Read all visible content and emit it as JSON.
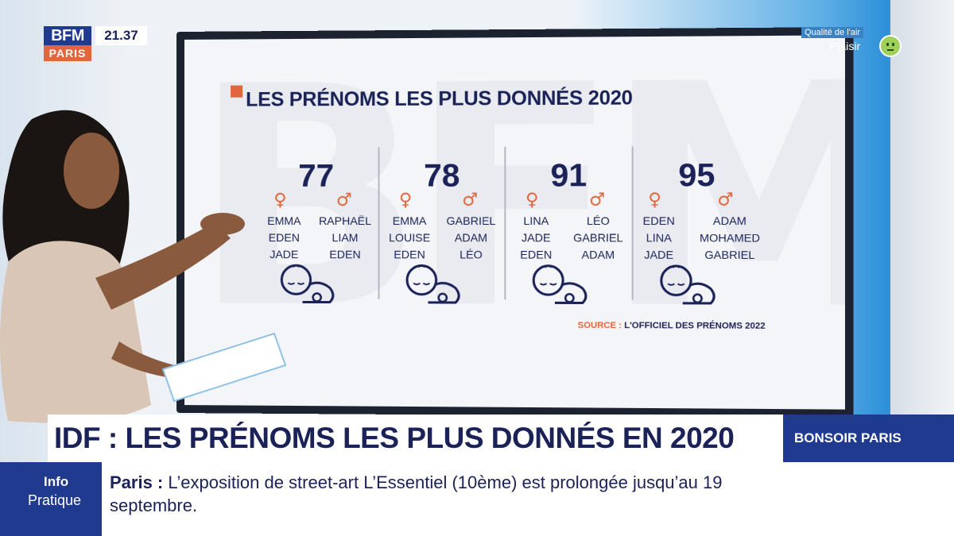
{
  "channel": {
    "logo_top": "BFM",
    "logo_bottom": "PARIS",
    "time": "21.37",
    "air_quality_title": "Qualité de l'air",
    "air_quality_value": "Plaisir"
  },
  "board": {
    "title": "LES PRÉNOMS LES PLUS DONNÉS 2020",
    "source_label": "SOURCE :",
    "source_text": "L'OFFICIEL DES PRÉNOMS 2022",
    "columns": [
      {
        "number": "77",
        "girls": [
          "EMMA",
          "EDEN",
          "JADE"
        ],
        "boys": [
          "RAPHAËL",
          "LIAM",
          "EDEN"
        ]
      },
      {
        "number": "78",
        "girls": [
          "EMMA",
          "LOUISE",
          "EDEN"
        ],
        "boys": [
          "GABRIEL",
          "ADAM",
          "LÉO"
        ]
      },
      {
        "number": "91",
        "girls": [
          "LINA",
          "JADE",
          "EDEN"
        ],
        "boys": [
          "LÉO",
          "GABRIEL",
          "ADAM"
        ]
      },
      {
        "number": "95",
        "girls": [
          "EDEN",
          "LINA",
          "JADE"
        ],
        "boys": [
          "ADAM",
          "MOHAMED",
          "GABRIEL"
        ]
      }
    ]
  },
  "lower_third": {
    "headline": "IDF : LES PRÉNOMS LES PLUS DONNÉS EN 2020",
    "show": "BONSOIR PARIS"
  },
  "ticker": {
    "label_top": "Info",
    "label_bottom": "Pratique",
    "city": "Paris :",
    "text": "L’exposition de street-art L’Essentiel (10ème) est prolongée jusqu’au 19 septembre."
  }
}
